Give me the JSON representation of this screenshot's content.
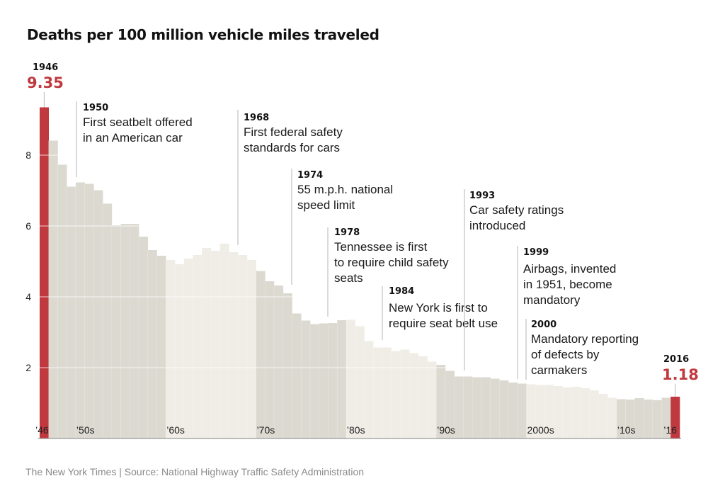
{
  "chart_data": {
    "type": "bar",
    "title": "Deaths per 100 million vehicle miles traveled",
    "xlabel": "",
    "ylabel": "",
    "ylim": [
      0,
      9.5
    ],
    "yticks": [
      2,
      4,
      6,
      8
    ],
    "grid": true,
    "categories": [
      1946,
      1947,
      1948,
      1949,
      1950,
      1951,
      1952,
      1953,
      1954,
      1955,
      1956,
      1957,
      1958,
      1959,
      1960,
      1961,
      1962,
      1963,
      1964,
      1965,
      1966,
      1967,
      1968,
      1969,
      1970,
      1971,
      1972,
      1973,
      1974,
      1975,
      1976,
      1977,
      1978,
      1979,
      1980,
      1981,
      1982,
      1983,
      1984,
      1985,
      1986,
      1987,
      1988,
      1989,
      1990,
      1991,
      1992,
      1993,
      1994,
      1995,
      1996,
      1997,
      1998,
      1999,
      2000,
      2001,
      2002,
      2003,
      2004,
      2005,
      2006,
      2007,
      2008,
      2009,
      2010,
      2011,
      2012,
      2013,
      2014,
      2015,
      2016
    ],
    "values": [
      9.35,
      8.41,
      7.73,
      7.11,
      7.23,
      7.19,
      7.01,
      6.63,
      6.02,
      6.06,
      6.06,
      5.7,
      5.32,
      5.16,
      5.04,
      4.92,
      5.08,
      5.18,
      5.38,
      5.3,
      5.5,
      5.26,
      5.18,
      5.04,
      4.73,
      4.44,
      4.32,
      4.1,
      3.53,
      3.33,
      3.23,
      3.25,
      3.26,
      3.34,
      3.35,
      3.17,
      2.75,
      2.57,
      2.57,
      2.47,
      2.51,
      2.41,
      2.32,
      2.17,
      2.08,
      1.91,
      1.75,
      1.75,
      1.73,
      1.73,
      1.69,
      1.64,
      1.58,
      1.55,
      1.53,
      1.51,
      1.51,
      1.48,
      1.44,
      1.46,
      1.42,
      1.36,
      1.26,
      1.15,
      1.11,
      1.1,
      1.14,
      1.1,
      1.08,
      1.15,
      1.18
    ],
    "highlighted": [
      {
        "year": "1946",
        "value": "9.35"
      },
      {
        "year": "2016",
        "value": "1.18"
      }
    ],
    "x_tick_labels": [
      {
        "year": 1946,
        "label": "’46"
      },
      {
        "year": 1950,
        "label": "’50s"
      },
      {
        "year": 1960,
        "label": "’60s"
      },
      {
        "year": 1970,
        "label": "’70s"
      },
      {
        "year": 1980,
        "label": "’80s"
      },
      {
        "year": 1990,
        "label": "’90s"
      },
      {
        "year": 2000,
        "label": "2000s"
      },
      {
        "year": 2010,
        "label": "’10s"
      },
      {
        "year": 2016,
        "label": "’16"
      }
    ],
    "annotations": [
      {
        "year": "1950",
        "lines": [
          "First seatbelt offered",
          "in an American car"
        ]
      },
      {
        "year": "1968",
        "lines": [
          "First federal safety",
          "standards for cars"
        ]
      },
      {
        "year": "1974",
        "lines": [
          "55 m.p.h. national",
          "speed limit"
        ]
      },
      {
        "year": "1978",
        "lines": [
          "Tennessee is first",
          "to require child safety",
          "seats"
        ]
      },
      {
        "year": "1984",
        "lines": [
          "New York is first to",
          "require seat belt use"
        ]
      },
      {
        "year": "1993",
        "lines": [
          "Car safety ratings",
          "introduced"
        ]
      },
      {
        "year": "1999",
        "lines": [
          "Airbags, invented",
          "in 1951, become",
          "mandatory"
        ]
      },
      {
        "year": "2000",
        "lines": [
          "Mandatory reporting",
          "of defects by",
          "carmakers"
        ]
      }
    ]
  },
  "colors": {
    "highlight": "#c0393f",
    "decade_dark": "#dcd9d1",
    "decade_light": "#efede6"
  },
  "source": "The New York Times | Source: National Highway Traffic Safety Administration"
}
